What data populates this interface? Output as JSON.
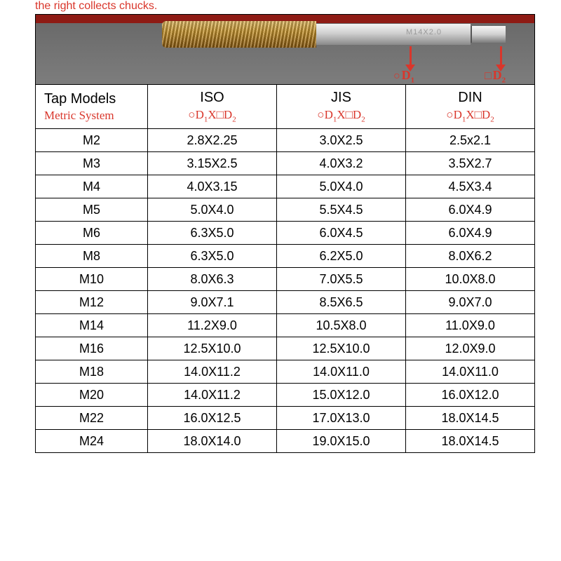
{
  "caption": "the right collects chucks.",
  "photo": {
    "shank_label": "M14X2.0",
    "dim1_symbol": "○",
    "dim1_text": "D",
    "dim1_sub": "1",
    "dim2_symbol": "□",
    "dim2_text": "D",
    "dim2_sub": "2",
    "colors": {
      "brand_red": "#d9362b",
      "tap_gold_top": "#e6c06a",
      "tap_gold_bot": "#8a5a10",
      "shank_top": "#f2f2f2",
      "shank_bot": "#8a8a8a"
    }
  },
  "table": {
    "type": "table",
    "headers": {
      "col0_main": "Tap Models",
      "col0_sub": "Metric System",
      "col1_main": "ISO",
      "col2_main": "JIS",
      "col3_main": "DIN",
      "dim_prefix_circle": "○",
      "dim_prefix_square": "□",
      "dim_d": "D",
      "dim_x": "X",
      "dim_sub1": "1",
      "dim_sub2": "2"
    },
    "columns": [
      "Tap Models",
      "ISO",
      "JIS",
      "DIN"
    ],
    "rows": [
      [
        "M2",
        "2.8X2.25",
        "3.0X2.5",
        "2.5x2.1"
      ],
      [
        "M3",
        "3.15X2.5",
        "4.0X3.2",
        "3.5X2.7"
      ],
      [
        "M4",
        "4.0X3.15",
        "5.0X4.0",
        "4.5X3.4"
      ],
      [
        "M5",
        "5.0X4.0",
        "5.5X4.5",
        "6.0X4.9"
      ],
      [
        "M6",
        "6.3X5.0",
        "6.0X4.5",
        "6.0X4.9"
      ],
      [
        "M8",
        "6.3X5.0",
        "6.2X5.0",
        "8.0X6.2"
      ],
      [
        "M10",
        "8.0X6.3",
        "7.0X5.5",
        "10.0X8.0"
      ],
      [
        "M12",
        "9.0X7.1",
        "8.5X6.5",
        "9.0X7.0"
      ],
      [
        "M14",
        "11.2X9.0",
        "10.5X8.0",
        "11.0X9.0"
      ],
      [
        "M16",
        "12.5X10.0",
        "12.5X10.0",
        "12.0X9.0"
      ],
      [
        "M18",
        "14.0X11.2",
        "14.0X11.0",
        "14.0X11.0"
      ],
      [
        "M20",
        "14.0X11.2",
        "15.0X12.0",
        "16.0X12.0"
      ],
      [
        "M22",
        "16.0X12.5",
        "17.0X13.0",
        "18.0X14.5"
      ],
      [
        "M24",
        "18.0X14.0",
        "19.0X15.0",
        "18.0X14.5"
      ]
    ],
    "border_color": "#000000",
    "cell_bg": "#ffffff",
    "cell_fontsize": 18,
    "header_fontsize": 20
  }
}
